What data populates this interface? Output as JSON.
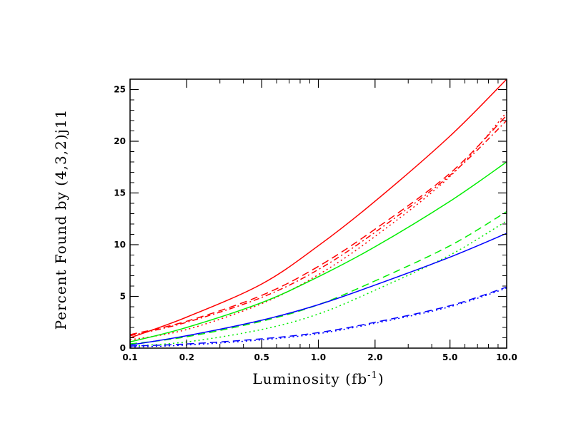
{
  "chart_data": {
    "type": "line",
    "xlabel": "Luminosity (fb",
    "xlabel_sup": "-1",
    "xlabel_close": ")",
    "ylabel": "Percent Found by (4,3,2)j11",
    "x_scale": "log",
    "xlim": [
      0.1,
      10.0
    ],
    "ylim": [
      0,
      26
    ],
    "x_tick_labels": [
      "0.1",
      "0.2",
      "0.5",
      "1.0",
      "2.0",
      "5.0",
      "10.0"
    ],
    "x_ticks": [
      0.1,
      0.2,
      0.5,
      1.0,
      2.0,
      5.0,
      10.0
    ],
    "y_tick_labels": [
      "0",
      "5",
      "10",
      "15",
      "20",
      "25"
    ],
    "y_ticks": [
      0,
      5,
      10,
      15,
      20,
      25
    ],
    "grid": false,
    "legend": "none",
    "x": [
      0.1,
      0.2,
      0.5,
      1.0,
      2.0,
      5.0,
      10.0
    ],
    "series": [
      {
        "color": "#ff0000",
        "dash": "solid",
        "values": [
          1.0,
          3.0,
          6.2,
          9.9,
          14.2,
          20.5,
          26.0
        ]
      },
      {
        "color": "#ff0000",
        "dash": "dashed",
        "values": [
          1.3,
          2.6,
          5.1,
          7.9,
          11.5,
          16.9,
          22.5
        ]
      },
      {
        "color": "#ff0000",
        "dash": "dotted",
        "values": [
          0.8,
          1.8,
          4.3,
          7.1,
          10.8,
          16.6,
          22.8
        ]
      },
      {
        "color": "#ff0000",
        "dash": "dashdot",
        "values": [
          1.2,
          2.5,
          4.9,
          7.6,
          11.2,
          16.7,
          22.0
        ]
      },
      {
        "color": "#00ee00",
        "dash": "solid",
        "values": [
          0.6,
          2.0,
          4.4,
          6.9,
          9.8,
          14.2,
          18.0
        ]
      },
      {
        "color": "#00ee00",
        "dash": "dashed",
        "values": [
          0.4,
          1.1,
          2.6,
          4.2,
          6.5,
          9.9,
          13.2
        ]
      },
      {
        "color": "#00ee00",
        "dash": "dotted",
        "values": [
          0.2,
          0.6,
          1.8,
          3.3,
          5.6,
          9.0,
          12.3
        ]
      },
      {
        "color": "#0000ff",
        "dash": "solid",
        "values": [
          0.3,
          1.2,
          2.7,
          4.2,
          6.1,
          8.8,
          11.1
        ]
      },
      {
        "color": "#0000ff",
        "dash": "dashed",
        "values": [
          0.2,
          0.4,
          0.9,
          1.5,
          2.5,
          4.1,
          5.9
        ]
      },
      {
        "color": "#0000ff",
        "dash": "dotted",
        "values": [
          0.1,
          0.3,
          0.8,
          1.4,
          2.4,
          4.0,
          5.8
        ]
      }
    ]
  }
}
